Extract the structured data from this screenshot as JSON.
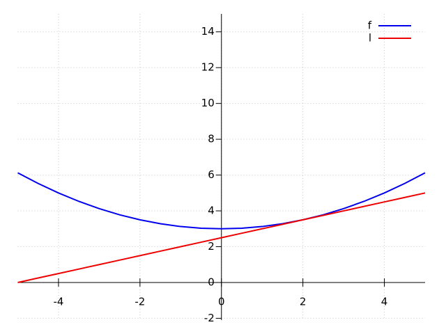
{
  "chart_data": {
    "type": "line",
    "x": [
      -5,
      -4.5,
      -4,
      -3.5,
      -3,
      -2.5,
      -2,
      -1.5,
      -1,
      -0.5,
      0,
      0.5,
      1,
      1.5,
      2,
      2.5,
      3,
      3.5,
      4,
      4.5,
      5
    ],
    "series": [
      {
        "name": "f",
        "color": "#0000ee",
        "values": [
          6.125,
          5.53125,
          5,
          4.53125,
          4.125,
          3.78125,
          3.5,
          3.28125,
          3.125,
          3.03125,
          3,
          3.03125,
          3.125,
          3.28125,
          3.5,
          3.78125,
          4.125,
          4.53125,
          5,
          5.53125,
          6.125
        ]
      },
      {
        "name": "l",
        "color": "#ee0000",
        "values": [
          0,
          0.25,
          0.5,
          0.75,
          1,
          1.25,
          1.5,
          1.75,
          2,
          2.25,
          2.5,
          2.75,
          3,
          3.25,
          3.5,
          3.75,
          4,
          4.25,
          4.5,
          4.75,
          5
        ]
      }
    ],
    "xlim": [
      -5,
      5
    ],
    "ylim": [
      -2.1,
      15
    ],
    "xticks": [
      -4,
      -2,
      0,
      2,
      4
    ],
    "yticks": [
      -2,
      0,
      2,
      4,
      6,
      8,
      10,
      12,
      14
    ],
    "grid": true,
    "legend": "upper right"
  }
}
